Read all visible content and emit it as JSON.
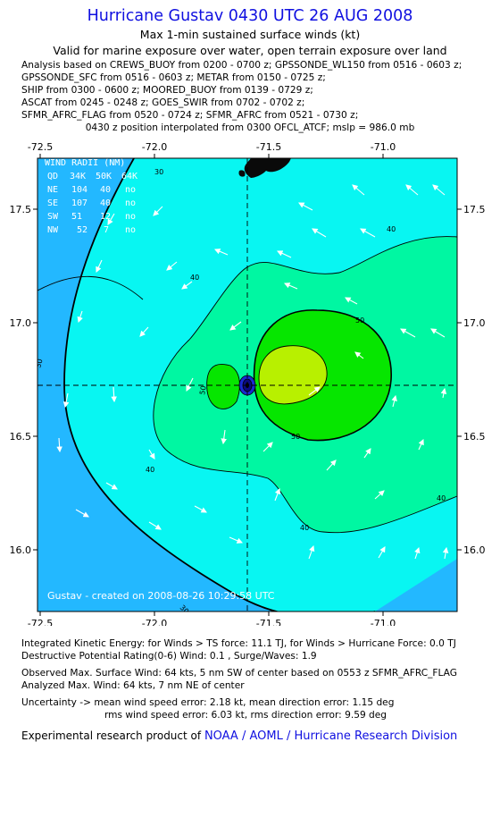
{
  "header": {
    "title": "Hurricane Gustav 0430 UTC 26 AUG 2008",
    "subtitle": "Max 1-min sustained surface winds (kt)",
    "validity": "Valid for marine exposure over water, open terrain exposure over land",
    "sources": [
      "Analysis based on  CREWS_BUOY from 0200 - 0700 z;  GPSSONDE_WL150 from 0516 - 0603 z;",
      "GPSSONDE_SFC from 0516 - 0603 z;  METAR from 0150 - 0725 z;",
      "SHIP from 0300 - 0600 z;  MOORED_BUOY from 0139 - 0729 z;",
      "ASCAT from 0245 - 0248 z;  GOES_SWIR from 0702 - 0702 z;",
      "SFMR_AFRC_FLAG from 0520 - 0724 z;  SFMR_AFRC from 0521 - 0730 z;"
    ],
    "position_note": "0430 z position interpolated from 0300 OFCL_ATCF;  mslp = 986.0 mb"
  },
  "chart_data": {
    "type": "heatmap",
    "description_kind": "wind field contour map",
    "xlim": [
      -72.5,
      -70.7
    ],
    "ylim": [
      15.75,
      17.7
    ],
    "x_ticks": [
      "-72.5",
      "-72.0",
      "-71.5",
      "-71.0"
    ],
    "y_ticks": [
      "17.5",
      "17.0",
      "16.5",
      "16.0"
    ],
    "grid": false,
    "center": {
      "lon": -71.53,
      "lat": 16.73
    },
    "contour_levels": [
      30,
      40,
      50,
      64
    ],
    "contour_labels": [
      {
        "text": "30",
        "lon": -72.0,
        "lat": 17.47
      },
      {
        "text": "30",
        "lon": -72.47,
        "lat": 16.83
      },
      {
        "text": "30",
        "lon": -71.87,
        "lat": 15.9
      },
      {
        "text": "40",
        "lon": -71.2,
        "lat": 17.41
      },
      {
        "text": "40",
        "lon": -72.05,
        "lat": 17.21
      },
      {
        "text": "40",
        "lon": -71.95,
        "lat": 16.35
      },
      {
        "text": "40",
        "lon": -71.28,
        "lat": 16.08
      },
      {
        "text": "40",
        "lon": -70.8,
        "lat": 16.21
      },
      {
        "text": "50",
        "lon": -71.14,
        "lat": 17.02
      },
      {
        "text": "50",
        "lon": -71.7,
        "lat": 16.67
      },
      {
        "text": "50",
        "lon": -71.36,
        "lat": 16.5
      }
    ],
    "colors": {
      "lt30": "#23b8ff",
      "c30_40": "#08f6f2",
      "c40_50": "#00f7a2",
      "c50_64": "#06e600",
      "c64_plus": "#b8f000",
      "land": "#0a0a0a"
    },
    "wind_radii": {
      "title": "WIND RADII (NM)",
      "header": [
        "QD",
        "34K",
        "50K",
        "64K"
      ],
      "rows": [
        [
          "NE",
          "104",
          "40",
          "no"
        ],
        [
          "SE",
          "107",
          "40",
          "no"
        ],
        [
          "SW",
          "51",
          "12",
          "no"
        ],
        [
          "NW",
          "52",
          "7",
          "no"
        ]
      ]
    },
    "stamp": "Gustav - created on 2008-08-26 10:29:58 UTC"
  },
  "stats": {
    "ike": "Integrated Kinetic Energy:  for Winds > TS force: 11.1 TJ,  for Winds > Hurricane Force: 0.0 TJ",
    "dpr": "Destructive Potential Rating(0-6)   Wind: 0.1 , Surge/Waves: 1.9",
    "obs_max": "Observed Max. Surface Wind: 64 kts, 5 nm SW of center based on 0553 z SFMR_AFRC_FLAG",
    "an_max": "Analyzed Max. Wind: 64 kts, 7 nm NE of center",
    "unc1": "Uncertainty -> mean wind speed error: 2.18 kt,   mean direction error: 1.15 deg",
    "unc2": "rms wind speed error: 6.03 kt,   rms direction error: 9.59 deg"
  },
  "credit": {
    "prefix": "Experimental research product of",
    "org": "NOAA / AOML / Hurricane Research Division"
  }
}
